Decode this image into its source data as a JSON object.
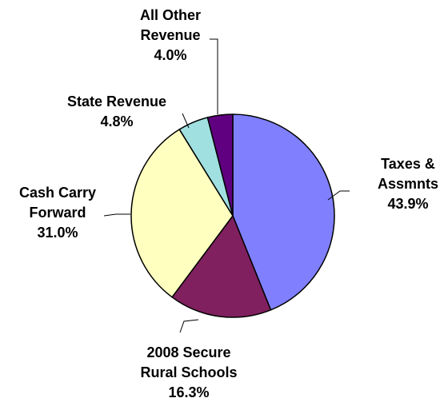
{
  "chart_data": {
    "type": "pie",
    "slices": [
      {
        "label_lines": [
          "Taxes &",
          "Assmnts"
        ],
        "value_label": "43.9%",
        "value": 43.9,
        "color": "#8080FF"
      },
      {
        "label_lines": [
          "2008 Secure",
          "Rural Schools"
        ],
        "value_label": "16.3%",
        "value": 16.3,
        "color": "#80205F"
      },
      {
        "label_lines": [
          "Cash Carry",
          "Forward"
        ],
        "value_label": "31.0%",
        "value": 31.0,
        "color": "#FFFFC0"
      },
      {
        "label_lines": [
          "State Revenue"
        ],
        "value_label": "4.8%",
        "value": 4.8,
        "color": "#A0E0E0"
      },
      {
        "label_lines": [
          "All Other",
          "Revenue"
        ],
        "value_label": "4.0%",
        "value": 4.0,
        "color": "#600080"
      }
    ],
    "start_angle": "12 o'clock",
    "direction": "clockwise",
    "legend": "none",
    "labels": "outside with leader lines"
  }
}
